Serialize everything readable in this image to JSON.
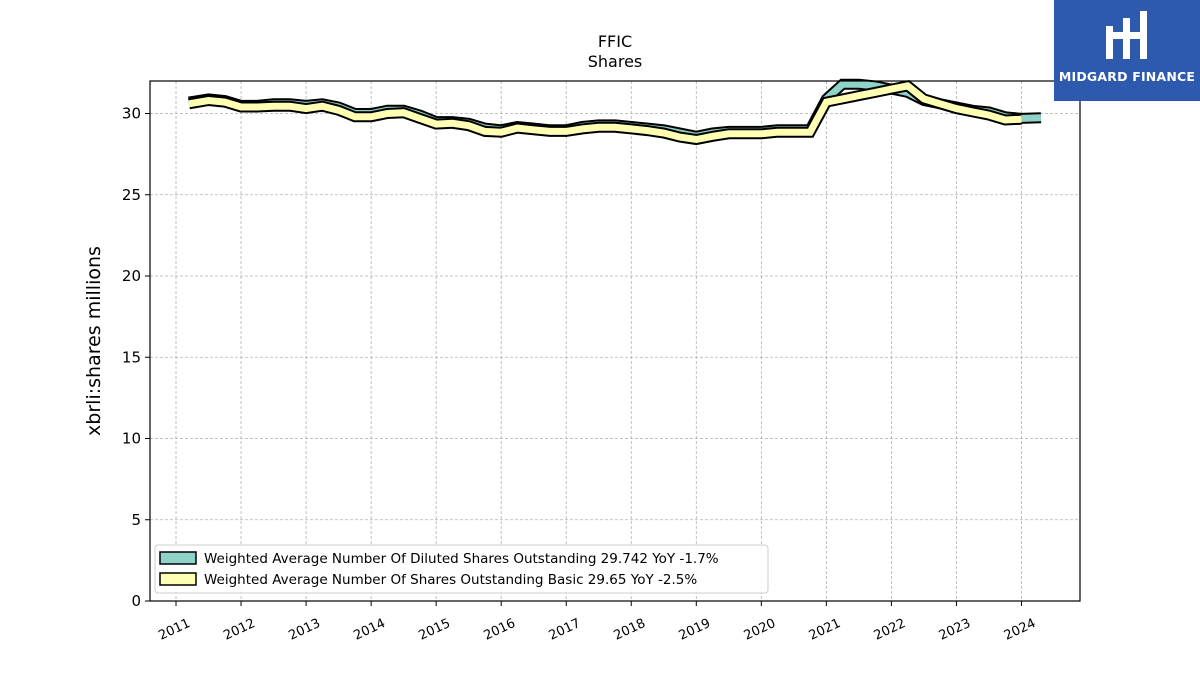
{
  "chart_data": {
    "type": "area",
    "title": "FFIC",
    "subtitle": "Shares",
    "xlabel": "",
    "ylabel": "xbrli:shares millions",
    "ylim": [
      0,
      32
    ],
    "yticks": [
      0,
      5,
      10,
      15,
      20,
      25,
      30
    ],
    "xticks": [
      "2011",
      "2012",
      "2013",
      "2014",
      "2015",
      "2016",
      "2017",
      "2018",
      "2019",
      "2020",
      "2021",
      "2022",
      "2023",
      "2024"
    ],
    "grid": true,
    "legend_position": "lower-left",
    "series": [
      {
        "name": "Weighted Average Number Of Diluted Shares Outstanding  29.742 YoY -1.7%",
        "color": "#8fd3c8",
        "x": [
          2011.2,
          2011.5,
          2011.75,
          2012.0,
          2012.25,
          2012.5,
          2012.75,
          2013.0,
          2013.25,
          2013.5,
          2013.75,
          2014.0,
          2014.25,
          2014.5,
          2014.75,
          2015.0,
          2015.25,
          2015.5,
          2015.75,
          2016.0,
          2016.25,
          2016.5,
          2016.75,
          2017.0,
          2017.25,
          2017.5,
          2017.75,
          2018.0,
          2018.25,
          2018.5,
          2018.75,
          2019.0,
          2019.25,
          2019.5,
          2019.75,
          2020.0,
          2020.25,
          2020.5,
          2020.75,
          2021.0,
          2021.25,
          2021.5,
          2021.75,
          2022.0,
          2022.25,
          2022.5,
          2022.75,
          2023.0,
          2023.25,
          2023.5,
          2023.75,
          2024.0,
          2024.3
        ],
        "values": [
          30.7,
          30.9,
          30.8,
          30.5,
          30.5,
          30.6,
          30.6,
          30.5,
          30.6,
          30.4,
          30.0,
          30.0,
          30.2,
          30.2,
          29.9,
          29.5,
          29.5,
          29.4,
          29.1,
          29.0,
          29.2,
          29.1,
          29.0,
          29.0,
          29.2,
          29.3,
          29.3,
          29.2,
          29.1,
          29.0,
          28.8,
          28.6,
          28.8,
          28.9,
          28.9,
          28.9,
          29.0,
          29.0,
          29.0,
          30.9,
          31.8,
          31.8,
          31.7,
          31.5,
          31.3,
          30.8,
          30.6,
          30.4,
          30.2,
          30.1,
          29.8,
          29.7,
          29.742
        ]
      },
      {
        "name": "Weighted Average Number Of Shares Outstanding Basic  29.65 YoY -2.5%",
        "color": "#ffffb3",
        "x": [
          2011.2,
          2011.5,
          2011.75,
          2012.0,
          2012.25,
          2012.5,
          2012.75,
          2013.0,
          2013.25,
          2013.5,
          2013.75,
          2014.0,
          2014.25,
          2014.5,
          2014.75,
          2015.0,
          2015.25,
          2015.5,
          2015.75,
          2016.0,
          2016.25,
          2016.5,
          2016.75,
          2017.0,
          2017.25,
          2017.5,
          2017.75,
          2018.0,
          2018.25,
          2018.5,
          2018.75,
          2019.0,
          2019.25,
          2019.5,
          2019.75,
          2020.0,
          2020.25,
          2020.5,
          2020.75,
          2021.0,
          2021.25,
          2021.5,
          2021.75,
          2022.0,
          2022.25,
          2022.5,
          2022.75,
          2023.0,
          2023.25,
          2023.5,
          2023.75,
          2024.0
        ],
        "values": [
          30.6,
          30.8,
          30.7,
          30.4,
          30.4,
          30.45,
          30.45,
          30.3,
          30.45,
          30.2,
          29.8,
          29.8,
          30.0,
          30.05,
          29.7,
          29.35,
          29.4,
          29.25,
          28.9,
          28.85,
          29.1,
          29.0,
          28.9,
          28.9,
          29.05,
          29.15,
          29.15,
          29.05,
          28.95,
          28.8,
          28.55,
          28.4,
          28.6,
          28.75,
          28.75,
          28.75,
          28.85,
          28.85,
          28.85,
          30.7,
          30.9,
          31.1,
          31.3,
          31.5,
          31.7,
          30.9,
          30.6,
          30.3,
          30.1,
          29.9,
          29.6,
          29.65
        ]
      }
    ]
  },
  "logo": {
    "text": "MIDGARD FINANCE",
    "color": "#2d5aad"
  }
}
